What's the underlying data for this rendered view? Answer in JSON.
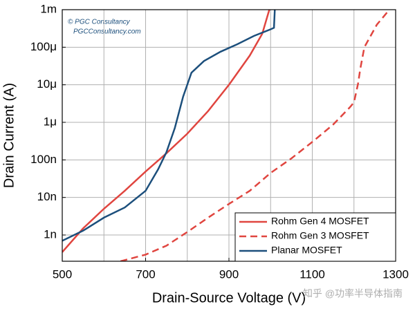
{
  "chart_data": {
    "type": "line",
    "x_label": "Drain-Source Voltage (V)",
    "y_label": "Drain Current (A)",
    "annotations": [
      "© PGC Consultancy",
      "PGCConsultancy.com"
    ],
    "watermark": "知乎 @功率半导体指南",
    "xlim": [
      500,
      1300
    ],
    "xticks": [
      500,
      700,
      900,
      1100,
      1300
    ],
    "minor_xticks": [
      600,
      800,
      1000,
      1200
    ],
    "ylim": [
      2e-10,
      0.001
    ],
    "y_scale": "log",
    "yticks": [
      {
        "value": 1e-09,
        "label": "1n"
      },
      {
        "value": 1e-08,
        "label": "10n"
      },
      {
        "value": 1e-07,
        "label": "100n"
      },
      {
        "value": 1e-06,
        "label": "1μ"
      },
      {
        "value": 1e-05,
        "label": "10μ"
      },
      {
        "value": 0.0001,
        "label": "100μ"
      },
      {
        "value": 0.001,
        "label": "1m"
      }
    ],
    "grid": true,
    "legend": "lower right",
    "series": [
      {
        "name": "Rohm Gen 4 MOSFET",
        "color": "#e0453f",
        "style": "solid",
        "x": [
          500,
          550,
          600,
          650,
          700,
          750,
          800,
          850,
          900,
          950,
          980,
          997
        ],
        "values": [
          3.5e-10,
          1.5e-09,
          5e-09,
          1.5e-08,
          4.9e-08,
          1.5e-07,
          5e-07,
          2e-06,
          1e-05,
          6e-05,
          0.00023,
          0.001
        ]
      },
      {
        "name": "Rohm Gen 3 MOSFET",
        "color": "#e0453f",
        "style": "dashed",
        "x": [
          640,
          700,
          750,
          800,
          850,
          900,
          950,
          1000,
          1050,
          1100,
          1150,
          1190,
          1200,
          1210,
          1215,
          1225,
          1255,
          1285
        ],
        "values": [
          2e-10,
          3e-10,
          5.2e-10,
          1.2e-09,
          2.9e-09,
          6.7e-09,
          1.5e-08,
          4.5e-08,
          1.1e-07,
          3e-07,
          8.7e-07,
          2.5e-06,
          3.4e-06,
          1.1e-05,
          2.6e-05,
          0.0001,
          0.0004,
          0.001
        ]
      },
      {
        "name": "Planar MOSFET",
        "color": "#1c4f7c",
        "style": "solid",
        "x": [
          500,
          550,
          600,
          650,
          700,
          730,
          750,
          770,
          790,
          810,
          840,
          880,
          920,
          960,
          1000,
          1008,
          1010
        ],
        "values": [
          7e-10,
          1.3e-09,
          2.9e-09,
          5.4e-09,
          1.5e-08,
          5.6e-08,
          1.6e-07,
          7e-07,
          4.8e-06,
          2.1e-05,
          4.3e-05,
          7.6e-05,
          0.00012,
          0.0002,
          0.0003,
          0.00033,
          0.001
        ]
      }
    ]
  }
}
